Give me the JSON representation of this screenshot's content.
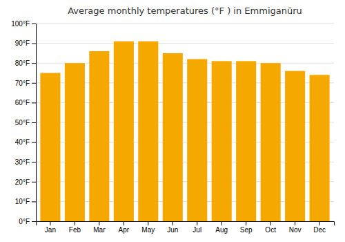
{
  "chart_data": {
    "type": "bar",
    "title": "Average monthly temperatures (°F ) in Emmiganūru",
    "categories": [
      "Jan",
      "Feb",
      "Mar",
      "Apr",
      "May",
      "Jun",
      "Jul",
      "Aug",
      "Sep",
      "Oct",
      "Nov",
      "Dec"
    ],
    "values": [
      75,
      80,
      86,
      91,
      91,
      85,
      82,
      81,
      81,
      80,
      76,
      74
    ],
    "color": "#F5A800",
    "ylim": [
      0,
      100
    ],
    "yticks": [
      {
        "value": 0,
        "label": "0°F"
      },
      {
        "value": 10,
        "label": "10°F"
      },
      {
        "value": 20,
        "label": "20°F"
      },
      {
        "value": 30,
        "label": "30°F"
      },
      {
        "value": 40,
        "label": "40°F"
      },
      {
        "value": 50,
        "label": "50°F"
      },
      {
        "value": 60,
        "label": "60°F"
      },
      {
        "value": 70,
        "label": "70°F"
      },
      {
        "value": 80,
        "label": "80°F"
      },
      {
        "value": 90,
        "label": "90°F"
      },
      {
        "value": 100,
        "label": "100°F"
      }
    ],
    "grid": true
  }
}
